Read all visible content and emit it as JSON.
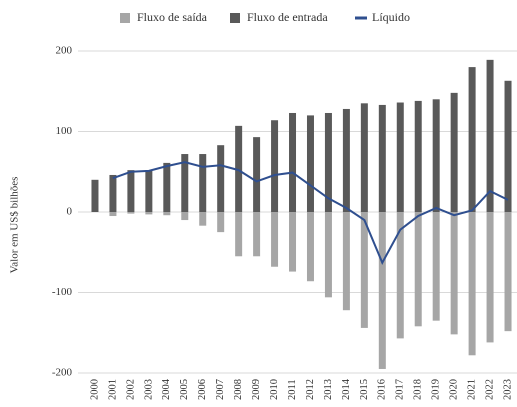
{
  "chart_data": {
    "type": "bar",
    "y_label": "Valor em US$ bilhões",
    "categories": [
      "2000",
      "2001",
      "2002",
      "2003",
      "2004",
      "2005",
      "2006",
      "2007",
      "2008",
      "2009",
      "2010",
      "2011",
      "2012",
      "2013",
      "2014",
      "2015",
      "2016",
      "2017",
      "2018",
      "2019",
      "2020",
      "2021",
      "2022",
      "2023"
    ],
    "series": [
      {
        "name": "Fluxo de saída",
        "type": "bar",
        "color": "#a6a6a6",
        "values": [
          0,
          -5,
          -2,
          -3,
          -4,
          -10,
          -17,
          -25,
          -55,
          -55,
          -68,
          -74,
          -86,
          -106,
          -122,
          -144,
          -195,
          -157,
          -142,
          -135,
          -152,
          -178,
          -162,
          -148
        ]
      },
      {
        "name": "Fluxo de entrada",
        "type": "bar",
        "color": "#595959",
        "values": [
          40,
          46,
          52,
          52,
          61,
          72,
          72,
          83,
          107,
          93,
          114,
          123,
          120,
          123,
          128,
          135,
          133,
          136,
          138,
          140,
          148,
          180,
          189,
          163
        ]
      },
      {
        "name": "Líquido",
        "type": "line",
        "color": "#2f4f8f",
        "values": [
          null,
          42,
          50,
          51,
          57,
          62,
          56,
          58,
          52,
          38,
          46,
          49,
          33,
          17,
          5,
          -10,
          -63,
          -22,
          -5,
          5,
          -4,
          2,
          26,
          15
        ]
      }
    ],
    "ylim": [
      -200,
      200
    ],
    "yticks": [
      -200,
      -100,
      0,
      100,
      200
    ],
    "grid": true,
    "legend": "top"
  }
}
